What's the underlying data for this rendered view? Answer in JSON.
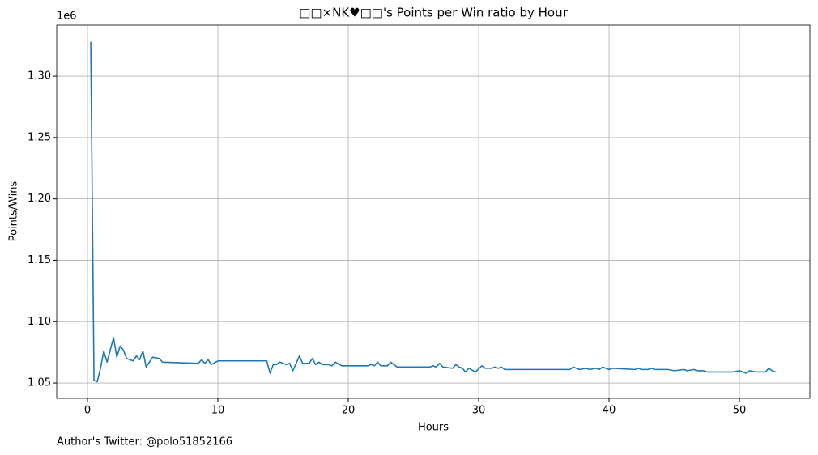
{
  "chart_data": {
    "type": "line",
    "title": "□□×NK♥□□'s Points per Win ratio by Hour",
    "x_label": "Hours",
    "y_label": "Points/Wins",
    "y_offset_label": "1e6",
    "footer": "Author's Twitter: @polo51852166",
    "color": "#1f77b4",
    "grid": true,
    "xlim": [
      -2.36,
      55.4
    ],
    "xticks": [
      0,
      10,
      20,
      30,
      40,
      50
    ],
    "ylim": [
      1037500,
      1341600
    ],
    "yticks": [
      {
        "value": 1050000,
        "label": "1.05"
      },
      {
        "value": 1100000,
        "label": "1.10"
      },
      {
        "value": 1150000,
        "label": "1.15"
      },
      {
        "value": 1200000,
        "label": "1.20"
      },
      {
        "value": 1250000,
        "label": "1.25"
      },
      {
        "value": 1300000,
        "label": "1.30"
      }
    ],
    "x": [
      0.25,
      0.5,
      0.75,
      1.0,
      1.25,
      1.5,
      1.75,
      2.0,
      2.25,
      2.5,
      2.75,
      3.0,
      3.5,
      3.75,
      4.0,
      4.25,
      4.5,
      5.0,
      5.5,
      5.75,
      8.5,
      8.75,
      9.0,
      9.25,
      9.5,
      10.0,
      13.75,
      14.0,
      14.25,
      14.5,
      14.75,
      15.25,
      15.5,
      15.75,
      16.25,
      16.5,
      17.0,
      17.25,
      17.5,
      17.75,
      18.0,
      18.5,
      18.75,
      19.0,
      19.5,
      21.5,
      21.75,
      22.0,
      22.25,
      22.5,
      23.0,
      23.25,
      23.75,
      26.25,
      26.5,
      26.75,
      27.0,
      27.25,
      28.0,
      28.25,
      28.5,
      28.75,
      29.0,
      29.25,
      29.75,
      30.25,
      30.5,
      31.0,
      31.25,
      31.5,
      31.75,
      32.0,
      37.0,
      37.25,
      37.75,
      38.25,
      38.5,
      39.0,
      39.25,
      39.5,
      40.0,
      40.25,
      42.0,
      42.25,
      42.5,
      43.0,
      43.25,
      43.5,
      44.5,
      45.0,
      45.75,
      46.0,
      46.5,
      46.75,
      47.25,
      47.5,
      49.25,
      49.5,
      50.0,
      50.25,
      50.5,
      50.75,
      51.25,
      52.0,
      52.25,
      52.5,
      52.75
    ],
    "values": [
      1328000,
      1052000,
      1051000,
      1062000,
      1076000,
      1067000,
      1077000,
      1087000,
      1071000,
      1080000,
      1077000,
      1070000,
      1068000,
      1072000,
      1069000,
      1076000,
      1063000,
      1071000,
      1070000,
      1067000,
      1066000,
      1069000,
      1066000,
      1069000,
      1065000,
      1068000,
      1068000,
      1058000,
      1065000,
      1065000,
      1067000,
      1065000,
      1066000,
      1060000,
      1072000,
      1066000,
      1066000,
      1070000,
      1065000,
      1067000,
      1065000,
      1065000,
      1064000,
      1067000,
      1064000,
      1064000,
      1065000,
      1064000,
      1067000,
      1064000,
      1064000,
      1067000,
      1063000,
      1063000,
      1064000,
      1063000,
      1066000,
      1063000,
      1062000,
      1065000,
      1063000,
      1062000,
      1059000,
      1062000,
      1059000,
      1064000,
      1062000,
      1062000,
      1063000,
      1062000,
      1063000,
      1061000,
      1061000,
      1063000,
      1061000,
      1062000,
      1061000,
      1062000,
      1061000,
      1063000,
      1061000,
      1062000,
      1061000,
      1062000,
      1061000,
      1061000,
      1062000,
      1061000,
      1061000,
      1060000,
      1061000,
      1060000,
      1061000,
      1060000,
      1060000,
      1059000,
      1059000,
      1059000,
      1060000,
      1059000,
      1058000,
      1060000,
      1059000,
      1059000,
      1062000,
      1060000,
      1059000
    ]
  }
}
